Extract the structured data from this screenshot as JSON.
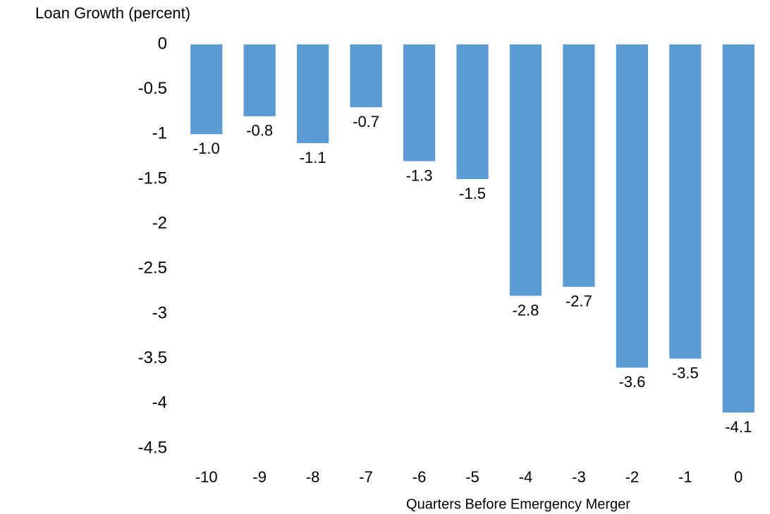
{
  "chart_data": {
    "type": "bar",
    "title": "Loan Growth (percent)",
    "x_label": "Quarters Before Emergency Merger",
    "categories": [
      "-10",
      "-9",
      "-8",
      "-7",
      "-6",
      "-5",
      "-4",
      "-3",
      "-2",
      "-1",
      "0"
    ],
    "values": [
      -1.0,
      -0.8,
      -1.1,
      -0.7,
      -1.3,
      -1.5,
      -2.8,
      -2.7,
      -3.6,
      -3.5,
      -4.1
    ],
    "value_labels": [
      "-1.0",
      "-0.8",
      "-1.1",
      "-0.7",
      "-1.3",
      "-1.5",
      "-2.8",
      "-2.7",
      "-3.6",
      "-3.5",
      "-4.1"
    ],
    "color": "#5b9bd5",
    "ylim": [
      -4.5,
      0
    ],
    "yticks": [
      0,
      -0.5,
      -1,
      -1.5,
      -2,
      -2.5,
      -3,
      -3.5,
      -4,
      -4.5
    ],
    "grid": false
  }
}
